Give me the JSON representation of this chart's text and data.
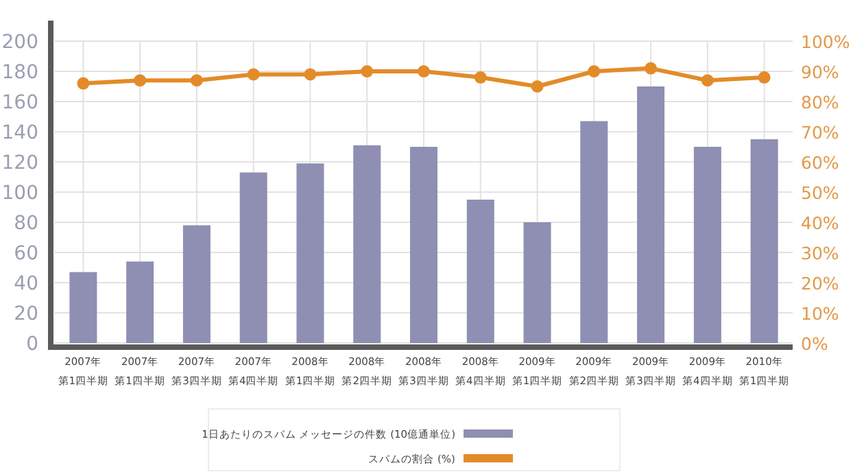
{
  "chart_data": {
    "type": "bar",
    "categories": [
      "2007年第1四半期",
      "2007年第1四半期",
      "2007年第3四半期",
      "2007年第4四半期",
      "2008年第1四半期",
      "2008年第2四半期",
      "2008年第3四半期",
      "2008年第4四半期",
      "2009年第1四半期",
      "2009年第2四半期",
      "2009年第3四半期",
      "2009年第4四半期",
      "2010年第1四半期"
    ],
    "series": [
      {
        "name": "1日あたりのスパム メッセージの件数 (10億通単位)",
        "color": "#8e8fb2",
        "values": [
          47,
          54,
          78,
          113,
          119,
          131,
          130,
          95,
          80,
          147,
          170,
          130,
          135
        ]
      },
      {
        "name": "スパムの割合 (%)",
        "color": "#e38b28",
        "type": "line",
        "axis": "y2",
        "marker": "circle",
        "values": [
          86,
          87,
          87,
          89,
          89,
          90,
          90,
          88,
          85,
          90,
          91,
          87,
          88
        ]
      }
    ],
    "ylim": [
      0,
      200
    ],
    "yticks": [
      0,
      20,
      40,
      60,
      80,
      100,
      120,
      140,
      160,
      180,
      200
    ],
    "y2lim": [
      0,
      100
    ],
    "y2ticks": [
      {
        "value": 0,
        "label": "0%"
      },
      {
        "value": 10,
        "label": "10%"
      },
      {
        "value": 20,
        "label": "20%"
      },
      {
        "value": 30,
        "label": "30%"
      },
      {
        "value": 40,
        "label": "40%"
      },
      {
        "value": 50,
        "label": "50%"
      },
      {
        "value": 60,
        "label": "60%"
      },
      {
        "value": 70,
        "label": "70%"
      },
      {
        "value": 80,
        "label": "80%"
      },
      {
        "value": 90,
        "label": "90%"
      },
      {
        "value": 100,
        "label": "100%"
      }
    ],
    "grid": true,
    "legend": "bottom"
  }
}
